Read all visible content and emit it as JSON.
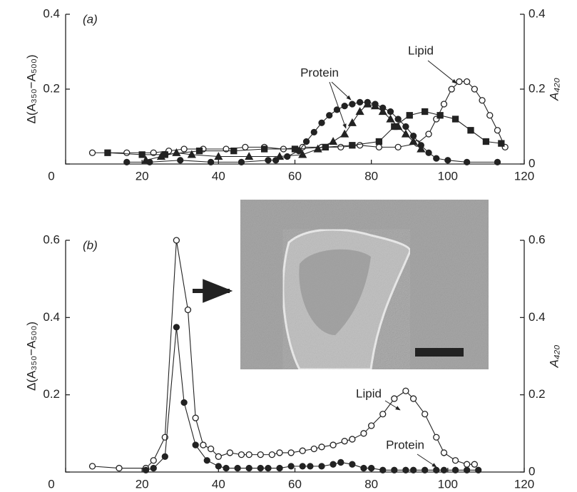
{
  "chart_data": [
    {
      "type": "line",
      "panel_label": "(a)",
      "ylabel": "Δ(A₃₅₀−A₅₀₀)",
      "y2label": "A₄₂₀",
      "xlim": [
        0,
        120
      ],
      "xticks": [
        0,
        20,
        40,
        60,
        80,
        100,
        120
      ],
      "ylim": [
        0,
        0.4
      ],
      "yticks": [
        0,
        0.2,
        0.4
      ],
      "y2lim": [
        0,
        0.4
      ],
      "y2ticks": [
        0,
        0.2,
        0.4
      ],
      "annotations": [
        "Protein",
        "Lipid"
      ],
      "series": [
        {
          "marker": "circle-open",
          "color": "#222",
          "x": [
            7,
            16,
            23,
            27,
            31,
            36,
            42,
            47,
            52,
            57,
            62,
            67,
            72,
            77,
            82,
            87,
            92,
            95,
            97,
            99,
            101,
            103,
            105,
            107,
            109,
            111,
            113,
            115
          ],
          "values": [
            0.03,
            0.03,
            0.03,
            0.035,
            0.04,
            0.04,
            0.04,
            0.045,
            0.045,
            0.04,
            0.045,
            0.045,
            0.045,
            0.05,
            0.045,
            0.045,
            0.055,
            0.08,
            0.12,
            0.16,
            0.2,
            0.22,
            0.22,
            0.2,
            0.17,
            0.13,
            0.09,
            0.045
          ]
        },
        {
          "marker": "circle",
          "color": "#222",
          "x": [
            16,
            22,
            30,
            38,
            46,
            53,
            55,
            58,
            61,
            63,
            65,
            67,
            69,
            71,
            73,
            75,
            77,
            79,
            81,
            83,
            85,
            87,
            89,
            91,
            93,
            95,
            97,
            100,
            105,
            113
          ],
          "values": [
            0.005,
            0.005,
            0.01,
            0.005,
            0.005,
            0.01,
            0.01,
            0.02,
            0.035,
            0.06,
            0.085,
            0.11,
            0.13,
            0.145,
            0.155,
            0.16,
            0.165,
            0.165,
            0.16,
            0.15,
            0.14,
            0.12,
            0.1,
            0.075,
            0.05,
            0.03,
            0.015,
            0.01,
            0.005,
            0.005
          ]
        },
        {
          "marker": "triangle",
          "color": "#222",
          "x": [
            21,
            25,
            29,
            33,
            40,
            48,
            56,
            62,
            66,
            70,
            73,
            75,
            77,
            79,
            81,
            83,
            85,
            87,
            89,
            91,
            93
          ],
          "values": [
            0.01,
            0.02,
            0.03,
            0.025,
            0.02,
            0.02,
            0.02,
            0.025,
            0.04,
            0.06,
            0.08,
            0.11,
            0.14,
            0.16,
            0.155,
            0.14,
            0.12,
            0.1,
            0.08,
            0.06,
            0.04
          ]
        },
        {
          "marker": "square",
          "color": "#222",
          "x": [
            11,
            20,
            26,
            35,
            44,
            52,
            60,
            68,
            75,
            82,
            86,
            90,
            94,
            98,
            102,
            106,
            110,
            114
          ],
          "values": [
            0.03,
            0.025,
            0.025,
            0.035,
            0.035,
            0.04,
            0.04,
            0.045,
            0.05,
            0.06,
            0.1,
            0.13,
            0.14,
            0.13,
            0.12,
            0.09,
            0.06,
            0.055
          ]
        }
      ]
    },
    {
      "type": "line",
      "panel_label": "(b)",
      "ylabel": "Δ(A₃₅₀−A₅₀₀)",
      "y2label": "A₄₂₀",
      "xlim": [
        0,
        120
      ],
      "xticks": [
        0,
        20,
        40,
        60,
        80,
        100,
        120
      ],
      "ylim": [
        0,
        0.6
      ],
      "yticks": [
        0,
        0.2,
        0.4,
        0.6
      ],
      "y2lim": [
        0,
        0.6
      ],
      "y2ticks": [
        0,
        0.2,
        0.4,
        0.6
      ],
      "annotations": [
        "Lipid",
        "Protein"
      ],
      "series": [
        {
          "marker": "circle-open",
          "color": "#222",
          "x": [
            7,
            14,
            21,
            23,
            26,
            29,
            32,
            34,
            36,
            38,
            40,
            43,
            46,
            48,
            51,
            54,
            56,
            59,
            62,
            65,
            67,
            70,
            73,
            75,
            78,
            80,
            83,
            86,
            89,
            91,
            94,
            97,
            99,
            102,
            105,
            107
          ],
          "values": [
            0.015,
            0.01,
            0.01,
            0.03,
            0.09,
            0.6,
            0.42,
            0.14,
            0.07,
            0.06,
            0.04,
            0.05,
            0.045,
            0.045,
            0.045,
            0.045,
            0.05,
            0.05,
            0.055,
            0.06,
            0.065,
            0.07,
            0.08,
            0.085,
            0.1,
            0.12,
            0.15,
            0.19,
            0.21,
            0.19,
            0.15,
            0.09,
            0.05,
            0.03,
            0.02,
            0.02
          ]
        },
        {
          "marker": "circle",
          "color": "#222",
          "x": [
            21,
            23,
            26,
            29,
            31,
            34,
            37,
            40,
            42,
            45,
            48,
            51,
            53,
            56,
            59,
            62,
            64,
            67,
            70,
            72,
            75,
            78,
            80,
            83,
            86,
            89,
            91,
            94,
            97,
            99,
            102,
            105,
            108
          ],
          "values": [
            0.005,
            0.01,
            0.04,
            0.375,
            0.18,
            0.07,
            0.03,
            0.015,
            0.01,
            0.01,
            0.01,
            0.01,
            0.01,
            0.01,
            0.015,
            0.015,
            0.015,
            0.015,
            0.02,
            0.025,
            0.02,
            0.01,
            0.01,
            0.005,
            0.005,
            0.005,
            0.005,
            0.005,
            0.005,
            0.005,
            0.005,
            0.005,
            0.005
          ]
        }
      ]
    }
  ]
}
